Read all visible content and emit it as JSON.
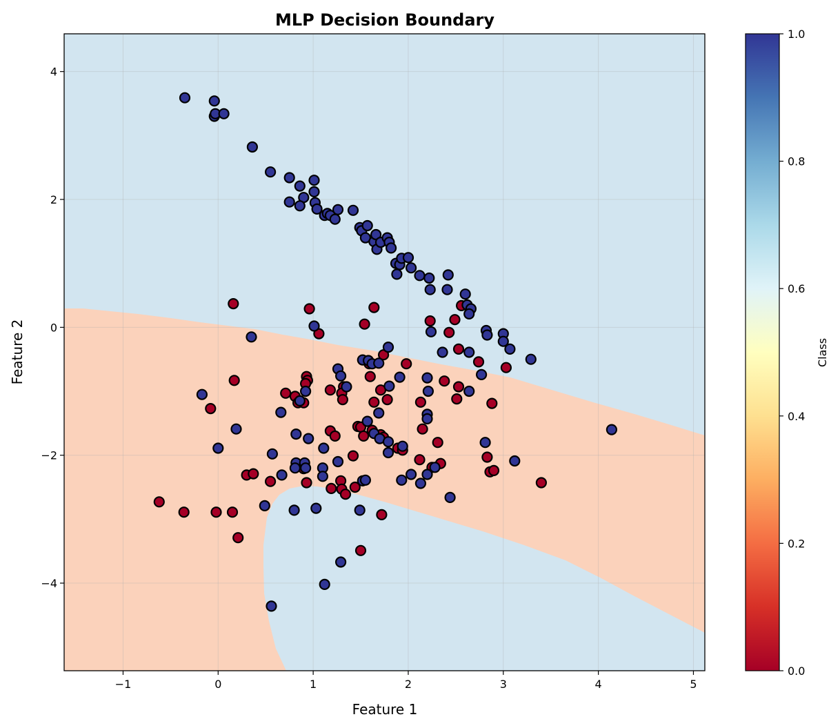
{
  "chart_data": {
    "type": "scatter",
    "title": "MLP Decision Boundary",
    "xlabel": "Feature 1",
    "ylabel": "Feature 2",
    "xlim": [
      -1.62,
      5.12
    ],
    "ylim": [
      -5.37,
      4.59
    ],
    "xticks": [
      -1,
      0,
      1,
      2,
      3,
      4,
      5
    ],
    "yticks": [
      -4,
      -2,
      0,
      2,
      4
    ],
    "ytick_labels": [
      "−4",
      "−2",
      "0",
      "2",
      "4"
    ],
    "xtick_labels": [
      "−1",
      "0",
      "1",
      "2",
      "3",
      "4",
      "5"
    ],
    "grid": true,
    "colormap": "RdYlBu",
    "colors": {
      "class0_point": "#a50026",
      "class1_point": "#313695",
      "region_class0": "#fbd2bb",
      "region_class1": "#d2e5f0",
      "point_edge": "#000000"
    },
    "colorbar": {
      "label": "Class",
      "range": [
        0.0,
        1.0
      ],
      "ticks": [
        "0.0",
        "0.2",
        "0.4",
        "0.6",
        "0.8",
        "1.0"
      ]
    },
    "series": [
      {
        "class": 0,
        "points": [
          [
            0.16,
            0.37
          ],
          [
            0.96,
            0.29
          ],
          [
            1.64,
            0.31
          ],
          [
            1.54,
            0.05
          ],
          [
            2.23,
            0.1
          ],
          [
            2.49,
            0.12
          ],
          [
            2.43,
            -0.08
          ],
          [
            1.06,
            -0.1
          ],
          [
            2.56,
            0.34
          ],
          [
            2.53,
            -0.34
          ],
          [
            2.74,
            -0.54
          ],
          [
            3.03,
            -0.63
          ],
          [
            1.59,
            -0.57
          ],
          [
            1.6,
            -0.77
          ],
          [
            1.74,
            -0.43
          ],
          [
            1.98,
            -0.57
          ],
          [
            0.17,
            -0.83
          ],
          [
            0.93,
            -0.77
          ],
          [
            0.94,
            -0.83
          ],
          [
            0.92,
            -0.88
          ],
          [
            1.32,
            -0.93
          ],
          [
            1.3,
            -1.03
          ],
          [
            1.31,
            -1.13
          ],
          [
            1.18,
            -0.98
          ],
          [
            1.71,
            -0.98
          ],
          [
            1.64,
            -1.17
          ],
          [
            1.78,
            -1.13
          ],
          [
            2.13,
            -1.17
          ],
          [
            2.38,
            -0.84
          ],
          [
            2.53,
            -0.93
          ],
          [
            2.51,
            -1.12
          ],
          [
            2.88,
            -1.19
          ],
          [
            0.71,
            -1.03
          ],
          [
            0.81,
            -1.08
          ],
          [
            0.84,
            -1.18
          ],
          [
            0.9,
            -1.18
          ],
          [
            -0.08,
            -1.27
          ],
          [
            1.18,
            -1.62
          ],
          [
            1.23,
            -1.7
          ],
          [
            1.47,
            -1.55
          ],
          [
            1.5,
            -1.56
          ],
          [
            1.53,
            -1.7
          ],
          [
            1.63,
            -1.64
          ],
          [
            1.62,
            -1.61
          ],
          [
            1.71,
            -1.68
          ],
          [
            1.74,
            -1.72
          ],
          [
            1.89,
            -1.89
          ],
          [
            1.94,
            -1.92
          ],
          [
            2.15,
            -1.59
          ],
          [
            2.31,
            -1.8
          ],
          [
            2.12,
            -2.07
          ],
          [
            2.25,
            -2.19
          ],
          [
            2.34,
            -2.13
          ],
          [
            2.83,
            -2.03
          ],
          [
            2.86,
            -2.26
          ],
          [
            2.9,
            -2.24
          ],
          [
            3.4,
            -2.43
          ],
          [
            1.42,
            -2.01
          ],
          [
            0.3,
            -2.31
          ],
          [
            0.37,
            -2.29
          ],
          [
            0.55,
            -2.41
          ],
          [
            0.93,
            -2.43
          ],
          [
            0.9,
            -2.21
          ],
          [
            1.29,
            -2.4
          ],
          [
            1.3,
            -2.53
          ],
          [
            1.34,
            -2.61
          ],
          [
            1.19,
            -2.52
          ],
          [
            1.44,
            -2.5
          ],
          [
            -0.62,
            -2.73
          ],
          [
            -0.36,
            -2.89
          ],
          [
            -0.02,
            -2.89
          ],
          [
            0.15,
            -2.89
          ],
          [
            0.21,
            -3.29
          ],
          [
            1.72,
            -2.93
          ],
          [
            1.5,
            -3.49
          ]
        ]
      },
      {
        "class": 1,
        "points": [
          [
            -0.35,
            3.59
          ],
          [
            -0.04,
            3.54
          ],
          [
            -0.04,
            3.3
          ],
          [
            -0.03,
            3.34
          ],
          [
            0.06,
            3.34
          ],
          [
            0.36,
            2.82
          ],
          [
            0.55,
            2.43
          ],
          [
            0.75,
            2.34
          ],
          [
            0.86,
            2.21
          ],
          [
            1.01,
            2.3
          ],
          [
            1.01,
            2.12
          ],
          [
            0.9,
            2.03
          ],
          [
            0.75,
            1.96
          ],
          [
            0.86,
            1.9
          ],
          [
            1.02,
            1.95
          ],
          [
            1.04,
            1.85
          ],
          [
            1.12,
            1.75
          ],
          [
            1.15,
            1.78
          ],
          [
            1.18,
            1.75
          ],
          [
            1.23,
            1.69
          ],
          [
            1.26,
            1.84
          ],
          [
            1.42,
            1.83
          ],
          [
            1.49,
            1.56
          ],
          [
            1.51,
            1.51
          ],
          [
            1.55,
            1.4
          ],
          [
            1.57,
            1.59
          ],
          [
            1.64,
            1.34
          ],
          [
            1.66,
            1.45
          ],
          [
            1.67,
            1.22
          ],
          [
            1.71,
            1.33
          ],
          [
            1.78,
            1.4
          ],
          [
            1.8,
            1.33
          ],
          [
            1.82,
            1.24
          ],
          [
            1.87,
            1.0
          ],
          [
            1.88,
            0.83
          ],
          [
            1.91,
            0.98
          ],
          [
            1.93,
            1.08
          ],
          [
            2.0,
            1.09
          ],
          [
            2.03,
            0.93
          ],
          [
            2.12,
            0.81
          ],
          [
            2.22,
            0.77
          ],
          [
            2.23,
            0.59
          ],
          [
            2.42,
            0.82
          ],
          [
            2.41,
            0.59
          ],
          [
            2.6,
            0.52
          ],
          [
            2.62,
            0.35
          ],
          [
            2.66,
            0.29
          ],
          [
            2.64,
            0.21
          ],
          [
            2.82,
            -0.05
          ],
          [
            2.83,
            -0.12
          ],
          [
            3.0,
            -0.1
          ],
          [
            3.0,
            -0.22
          ],
          [
            3.07,
            -0.34
          ],
          [
            3.29,
            -0.5
          ],
          [
            1.01,
            0.02
          ],
          [
            0.35,
            -0.15
          ],
          [
            2.24,
            -0.07
          ],
          [
            2.36,
            -0.39
          ],
          [
            2.64,
            -0.39
          ],
          [
            2.77,
            -0.74
          ],
          [
            2.64,
            -1.0
          ],
          [
            1.52,
            -0.51
          ],
          [
            1.58,
            -0.52
          ],
          [
            1.62,
            -0.57
          ],
          [
            1.79,
            -0.31
          ],
          [
            1.69,
            -0.56
          ],
          [
            1.26,
            -0.65
          ],
          [
            1.29,
            -0.76
          ],
          [
            1.35,
            -0.93
          ],
          [
            1.8,
            -0.92
          ],
          [
            1.91,
            -0.78
          ],
          [
            2.2,
            -0.79
          ],
          [
            2.21,
            -1.0
          ],
          [
            2.2,
            -1.36
          ],
          [
            2.2,
            -1.43
          ],
          [
            0.92,
            -1.0
          ],
          [
            0.86,
            -1.15
          ],
          [
            -0.17,
            -1.05
          ],
          [
            0.19,
            -1.59
          ],
          [
            0.66,
            -1.33
          ],
          [
            0.82,
            -1.67
          ],
          [
            0.95,
            -1.74
          ],
          [
            1.57,
            -1.47
          ],
          [
            1.69,
            -1.34
          ],
          [
            1.64,
            -1.66
          ],
          [
            1.7,
            -1.74
          ],
          [
            1.79,
            -1.79
          ],
          [
            1.79,
            -1.96
          ],
          [
            1.94,
            -1.86
          ],
          [
            1.93,
            -2.39
          ],
          [
            2.03,
            -2.3
          ],
          [
            2.13,
            -2.44
          ],
          [
            2.2,
            -2.3
          ],
          [
            2.28,
            -2.19
          ],
          [
            2.81,
            -1.8
          ],
          [
            3.12,
            -2.09
          ],
          [
            0.0,
            -1.89
          ],
          [
            0.57,
            -1.98
          ],
          [
            0.67,
            -2.31
          ],
          [
            0.82,
            -2.12
          ],
          [
            0.81,
            -2.2
          ],
          [
            0.91,
            -2.12
          ],
          [
            0.92,
            -2.2
          ],
          [
            1.11,
            -1.89
          ],
          [
            1.1,
            -2.2
          ],
          [
            1.1,
            -2.33
          ],
          [
            1.26,
            -2.1
          ],
          [
            1.52,
            -2.4
          ],
          [
            1.55,
            -2.39
          ],
          [
            1.49,
            -2.86
          ],
          [
            2.44,
            -2.66
          ],
          [
            0.49,
            -2.79
          ],
          [
            0.8,
            -2.86
          ],
          [
            1.03,
            -2.83
          ],
          [
            1.29,
            -3.67
          ],
          [
            1.12,
            -4.02
          ],
          [
            0.56,
            -4.36
          ],
          [
            4.14,
            -1.6
          ]
        ]
      }
    ]
  }
}
